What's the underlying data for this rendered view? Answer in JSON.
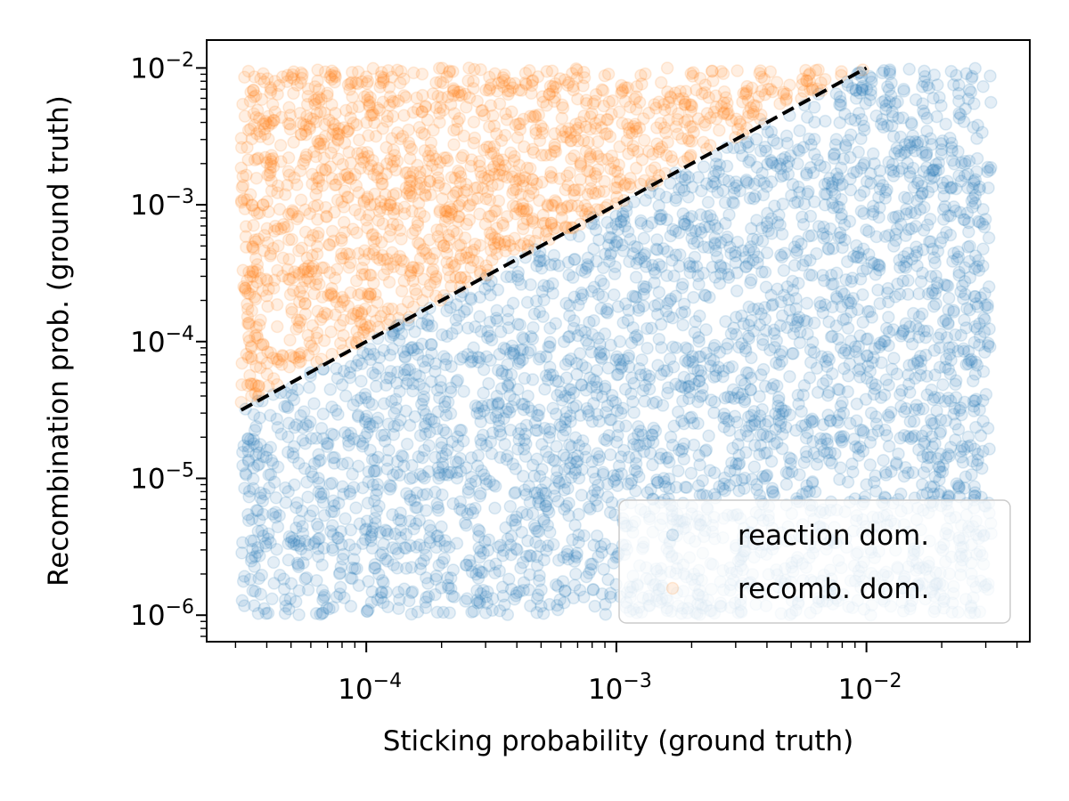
{
  "chart_data": {
    "type": "scatter",
    "title": "",
    "xlabel": "Sticking probability (ground truth)",
    "ylabel": "Recombination prob. (ground truth)",
    "xscale": "log",
    "yscale": "log",
    "xlim": [
      2.3e-05,
      0.045
    ],
    "ylim": [
      6.4e-07,
      0.016
    ],
    "x_ticks": [
      {
        "value": 0.0001,
        "base": "10",
        "exp": "−4"
      },
      {
        "value": 0.001,
        "base": "10",
        "exp": "−3"
      },
      {
        "value": 0.01,
        "base": "10",
        "exp": "−2"
      }
    ],
    "y_ticks": [
      {
        "value": 1e-06,
        "base": "10",
        "exp": "−6"
      },
      {
        "value": 1e-05,
        "base": "10",
        "exp": "−5"
      },
      {
        "value": 0.0001,
        "base": "10",
        "exp": "−4"
      },
      {
        "value": 0.001,
        "base": "10",
        "exp": "−3"
      },
      {
        "value": 0.01,
        "base": "10",
        "exp": "−2"
      }
    ],
    "series": [
      {
        "name": "reaction dom.",
        "color": "#1f77b4",
        "alpha": 0.12,
        "rule": "Recombination prob. < Sticking probability",
        "x_range": [
          3.16e-05,
          0.0316
        ],
        "y_range": [
          1e-06,
          0.01
        ],
        "approx_count": 3400
      },
      {
        "name": "recomb. dom.",
        "color": "#ff7f0e",
        "alpha": 0.12,
        "rule": "Recombination prob. > Sticking probability",
        "x_range": [
          3.16e-05,
          0.01
        ],
        "y_range": [
          3.16e-05,
          0.01
        ],
        "approx_count": 1500
      }
    ],
    "reference_line": {
      "style": "dashed",
      "color": "#000000",
      "points": [
        [
          3.16e-05,
          3.16e-05
        ],
        [
          0.01,
          0.01
        ]
      ]
    },
    "legend": {
      "position": "lower-right",
      "entries": [
        "reaction dom.",
        "recomb. dom."
      ]
    },
    "grid": false
  }
}
